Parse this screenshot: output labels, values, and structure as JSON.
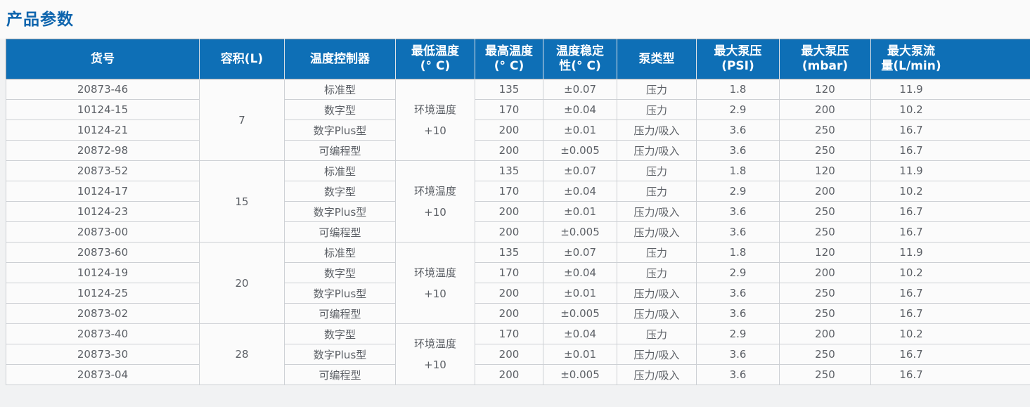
{
  "page_title": "产品参数",
  "table": {
    "columns": [
      {
        "key": "item",
        "label": "货号"
      },
      {
        "key": "capacity",
        "label": "容积(L)"
      },
      {
        "key": "controller",
        "label": "温度控制器"
      },
      {
        "key": "min_temp",
        "label": "最低温度\n(° C)"
      },
      {
        "key": "max_temp",
        "label": "最高温度\n(° C)"
      },
      {
        "key": "stability",
        "label": "温度稳定\n性(° C)"
      },
      {
        "key": "pump_type",
        "label": "泵类型"
      },
      {
        "key": "psi",
        "label": "最大泵压\n(PSI)"
      },
      {
        "key": "mbar",
        "label": "最大泵压\n(mbar)"
      },
      {
        "key": "flow",
        "label": "最大泵流\n量(L/min)"
      }
    ],
    "groups": [
      {
        "capacity": "7",
        "min_temp": "环境温度\n+10",
        "rows": [
          {
            "item": "20873-46",
            "controller": "标准型",
            "max_temp": "135",
            "stability": "±0.07",
            "pump_type": "压力",
            "psi": "1.8",
            "mbar": "120",
            "flow": "11.9"
          },
          {
            "item": "10124-15",
            "controller": "数字型",
            "max_temp": "170",
            "stability": "±0.04",
            "pump_type": "压力",
            "psi": "2.9",
            "mbar": "200",
            "flow": "10.2"
          },
          {
            "item": "10124-21",
            "controller": "数字Plus型",
            "max_temp": "200",
            "stability": "±0.01",
            "pump_type": "压力/吸入",
            "psi": "3.6",
            "mbar": "250",
            "flow": "16.7"
          },
          {
            "item": "20872-98",
            "controller": "可编程型",
            "max_temp": "200",
            "stability": "±0.005",
            "pump_type": "压力/吸入",
            "psi": "3.6",
            "mbar": "250",
            "flow": "16.7"
          }
        ]
      },
      {
        "capacity": "15",
        "min_temp": "环境温度\n+10",
        "rows": [
          {
            "item": "20873-52",
            "controller": "标准型",
            "max_temp": "135",
            "stability": "±0.07",
            "pump_type": "压力",
            "psi": "1.8",
            "mbar": "120",
            "flow": "11.9"
          },
          {
            "item": "10124-17",
            "controller": "数字型",
            "max_temp": "170",
            "stability": "±0.04",
            "pump_type": "压力",
            "psi": "2.9",
            "mbar": "200",
            "flow": "10.2"
          },
          {
            "item": "10124-23",
            "controller": "数字Plus型",
            "max_temp": "200",
            "stability": "±0.01",
            "pump_type": "压力/吸入",
            "psi": "3.6",
            "mbar": "250",
            "flow": "16.7"
          },
          {
            "item": "20873-00",
            "controller": "可编程型",
            "max_temp": "200",
            "stability": "±0.005",
            "pump_type": "压力/吸入",
            "psi": "3.6",
            "mbar": "250",
            "flow": "16.7"
          }
        ]
      },
      {
        "capacity": "20",
        "min_temp": "环境温度\n+10",
        "rows": [
          {
            "item": "20873-60",
            "controller": "标准型",
            "max_temp": "135",
            "stability": "±0.07",
            "pump_type": "压力",
            "psi": "1.8",
            "mbar": "120",
            "flow": "11.9"
          },
          {
            "item": "10124-19",
            "controller": "数字型",
            "max_temp": "170",
            "stability": "±0.04",
            "pump_type": "压力",
            "psi": "2.9",
            "mbar": "200",
            "flow": "10.2"
          },
          {
            "item": "10124-25",
            "controller": "数字Plus型",
            "max_temp": "200",
            "stability": "±0.01",
            "pump_type": "压力/吸入",
            "psi": "3.6",
            "mbar": "250",
            "flow": "16.7"
          },
          {
            "item": "20873-02",
            "controller": "可编程型",
            "max_temp": "200",
            "stability": "±0.005",
            "pump_type": "压力/吸入",
            "psi": "3.6",
            "mbar": "250",
            "flow": "16.7"
          }
        ]
      },
      {
        "capacity": "28",
        "min_temp": "环境温度\n+10",
        "rows": [
          {
            "item": "20873-40",
            "controller": "数字型",
            "max_temp": "170",
            "stability": "±0.04",
            "pump_type": "压力",
            "psi": "2.9",
            "mbar": "200",
            "flow": "10.2"
          },
          {
            "item": "20873-30",
            "controller": "数字Plus型",
            "max_temp": "200",
            "stability": "±0.01",
            "pump_type": "压力/吸入",
            "psi": "3.6",
            "mbar": "250",
            "flow": "16.7"
          },
          {
            "item": "20873-04",
            "controller": "可编程型",
            "max_temp": "200",
            "stability": "±0.005",
            "pump_type": "压力/吸入",
            "psi": "3.6",
            "mbar": "250",
            "flow": "16.7"
          }
        ]
      }
    ]
  },
  "colors": {
    "header_bg": "#0e6fb6",
    "title_text": "#0d64ad",
    "body_text": "#5c6066",
    "inner_border": "#cdd0d4",
    "group_border": "#9ba1a7",
    "page_bg": "#f1f2f3"
  }
}
